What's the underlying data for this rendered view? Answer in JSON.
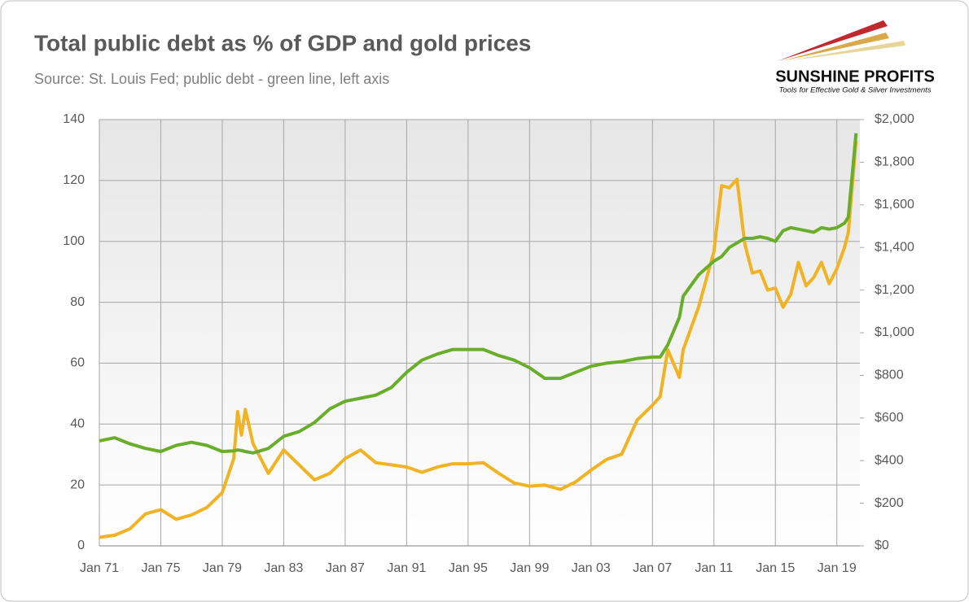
{
  "header": {
    "logo_title": "SUNSHINE PROFITS",
    "logo_tagline": "Tools for Effective Gold & Silver Investments"
  },
  "chart_data": {
    "type": "line",
    "title": "Total public debt as % of GDP and gold prices",
    "subtitle": "Source: St. Louis Fed; public debt - green line, left axis",
    "x": [
      1971,
      1972,
      1973,
      1974,
      1975,
      1976,
      1977,
      1978,
      1979,
      1979.75,
      1980,
      1980.25,
      1980.5,
      1981,
      1982,
      1983,
      1984,
      1985,
      1986,
      1987,
      1988,
      1989,
      1990,
      1991,
      1992,
      1993,
      1994,
      1995,
      1996,
      1997,
      1998,
      1999,
      2000,
      2001,
      2002,
      2003,
      2004,
      2005,
      2006,
      2007,
      2007.5,
      2008,
      2008.75,
      2009,
      2010,
      2011,
      2011.5,
      2012,
      2012.5,
      2013,
      2013.5,
      2014,
      2014.5,
      2015,
      2015.5,
      2016,
      2016.5,
      2017,
      2017.5,
      2018,
      2018.5,
      2019,
      2019.5,
      2019.75,
      2020.25
    ],
    "series": [
      {
        "name": "public debt",
        "color": "#6aad2a",
        "values": [
          34.5,
          35.5,
          33.5,
          32,
          31,
          33,
          34,
          33,
          31,
          31.2,
          31.5,
          31.3,
          31,
          30.5,
          32,
          36,
          37.5,
          40.5,
          45,
          47.5,
          48.5,
          49.5,
          52,
          57,
          61,
          63,
          64.5,
          64.5,
          64.5,
          62.5,
          61,
          58.5,
          55,
          55,
          57,
          59,
          60,
          60.5,
          61.5,
          62,
          62,
          66,
          75,
          82,
          89,
          93.5,
          95,
          98,
          99.5,
          101,
          101,
          101.5,
          101,
          100,
          103.5,
          104.5,
          104,
          103.5,
          103,
          104.5,
          104,
          104.5,
          106,
          108,
          135.5
        ]
      },
      {
        "name": "gold price",
        "color": "#f0b323",
        "axis": "y2",
        "values": [
          40,
          50,
          80,
          150,
          170,
          125,
          145,
          180,
          250,
          410,
          630,
          520,
          640,
          480,
          340,
          450,
          380,
          310,
          340,
          410,
          450,
          390,
          380,
          370,
          345,
          370,
          385,
          385,
          390,
          340,
          295,
          280,
          285,
          265,
          300,
          355,
          405,
          430,
          590,
          660,
          700,
          920,
          790,
          920,
          1120,
          1380,
          1690,
          1680,
          1720,
          1420,
          1280,
          1290,
          1200,
          1210,
          1120,
          1180,
          1330,
          1220,
          1260,
          1330,
          1230,
          1300,
          1400,
          1470,
          1900
        ]
      }
    ],
    "xlim": [
      1971,
      2020.5
    ],
    "xticks": [
      {
        "value": 1971,
        "label": "Jan 71"
      },
      {
        "value": 1975,
        "label": "Jan 75"
      },
      {
        "value": 1979,
        "label": "Jan 79"
      },
      {
        "value": 1983,
        "label": "Jan 83"
      },
      {
        "value": 1987,
        "label": "Jan 87"
      },
      {
        "value": 1991,
        "label": "Jan 91"
      },
      {
        "value": 1995,
        "label": "Jan 95"
      },
      {
        "value": 1999,
        "label": "Jan 99"
      },
      {
        "value": 2003,
        "label": "Jan 03"
      },
      {
        "value": 2007,
        "label": "Jan 07"
      },
      {
        "value": 2011,
        "label": "Jan 11"
      },
      {
        "value": 2015,
        "label": "Jan 15"
      },
      {
        "value": 2019,
        "label": "Jan 19"
      }
    ],
    "ylim": [
      0,
      140
    ],
    "yticks": [
      0,
      20,
      40,
      60,
      80,
      100,
      120,
      140
    ],
    "y2lim": [
      0,
      2000
    ],
    "y2ticks": [
      {
        "value": 0,
        "label": "$0"
      },
      {
        "value": 200,
        "label": "$200"
      },
      {
        "value": 400,
        "label": "$400"
      },
      {
        "value": 600,
        "label": "$600"
      },
      {
        "value": 800,
        "label": "$800"
      },
      {
        "value": 1000,
        "label": "$1,000"
      },
      {
        "value": 1200,
        "label": "$1,200"
      },
      {
        "value": 1400,
        "label": "$1,400"
      },
      {
        "value": 1600,
        "label": "$1,600"
      },
      {
        "value": 1800,
        "label": "$1,800"
      },
      {
        "value": 2000,
        "label": "$2,000"
      }
    ],
    "grid": true
  }
}
